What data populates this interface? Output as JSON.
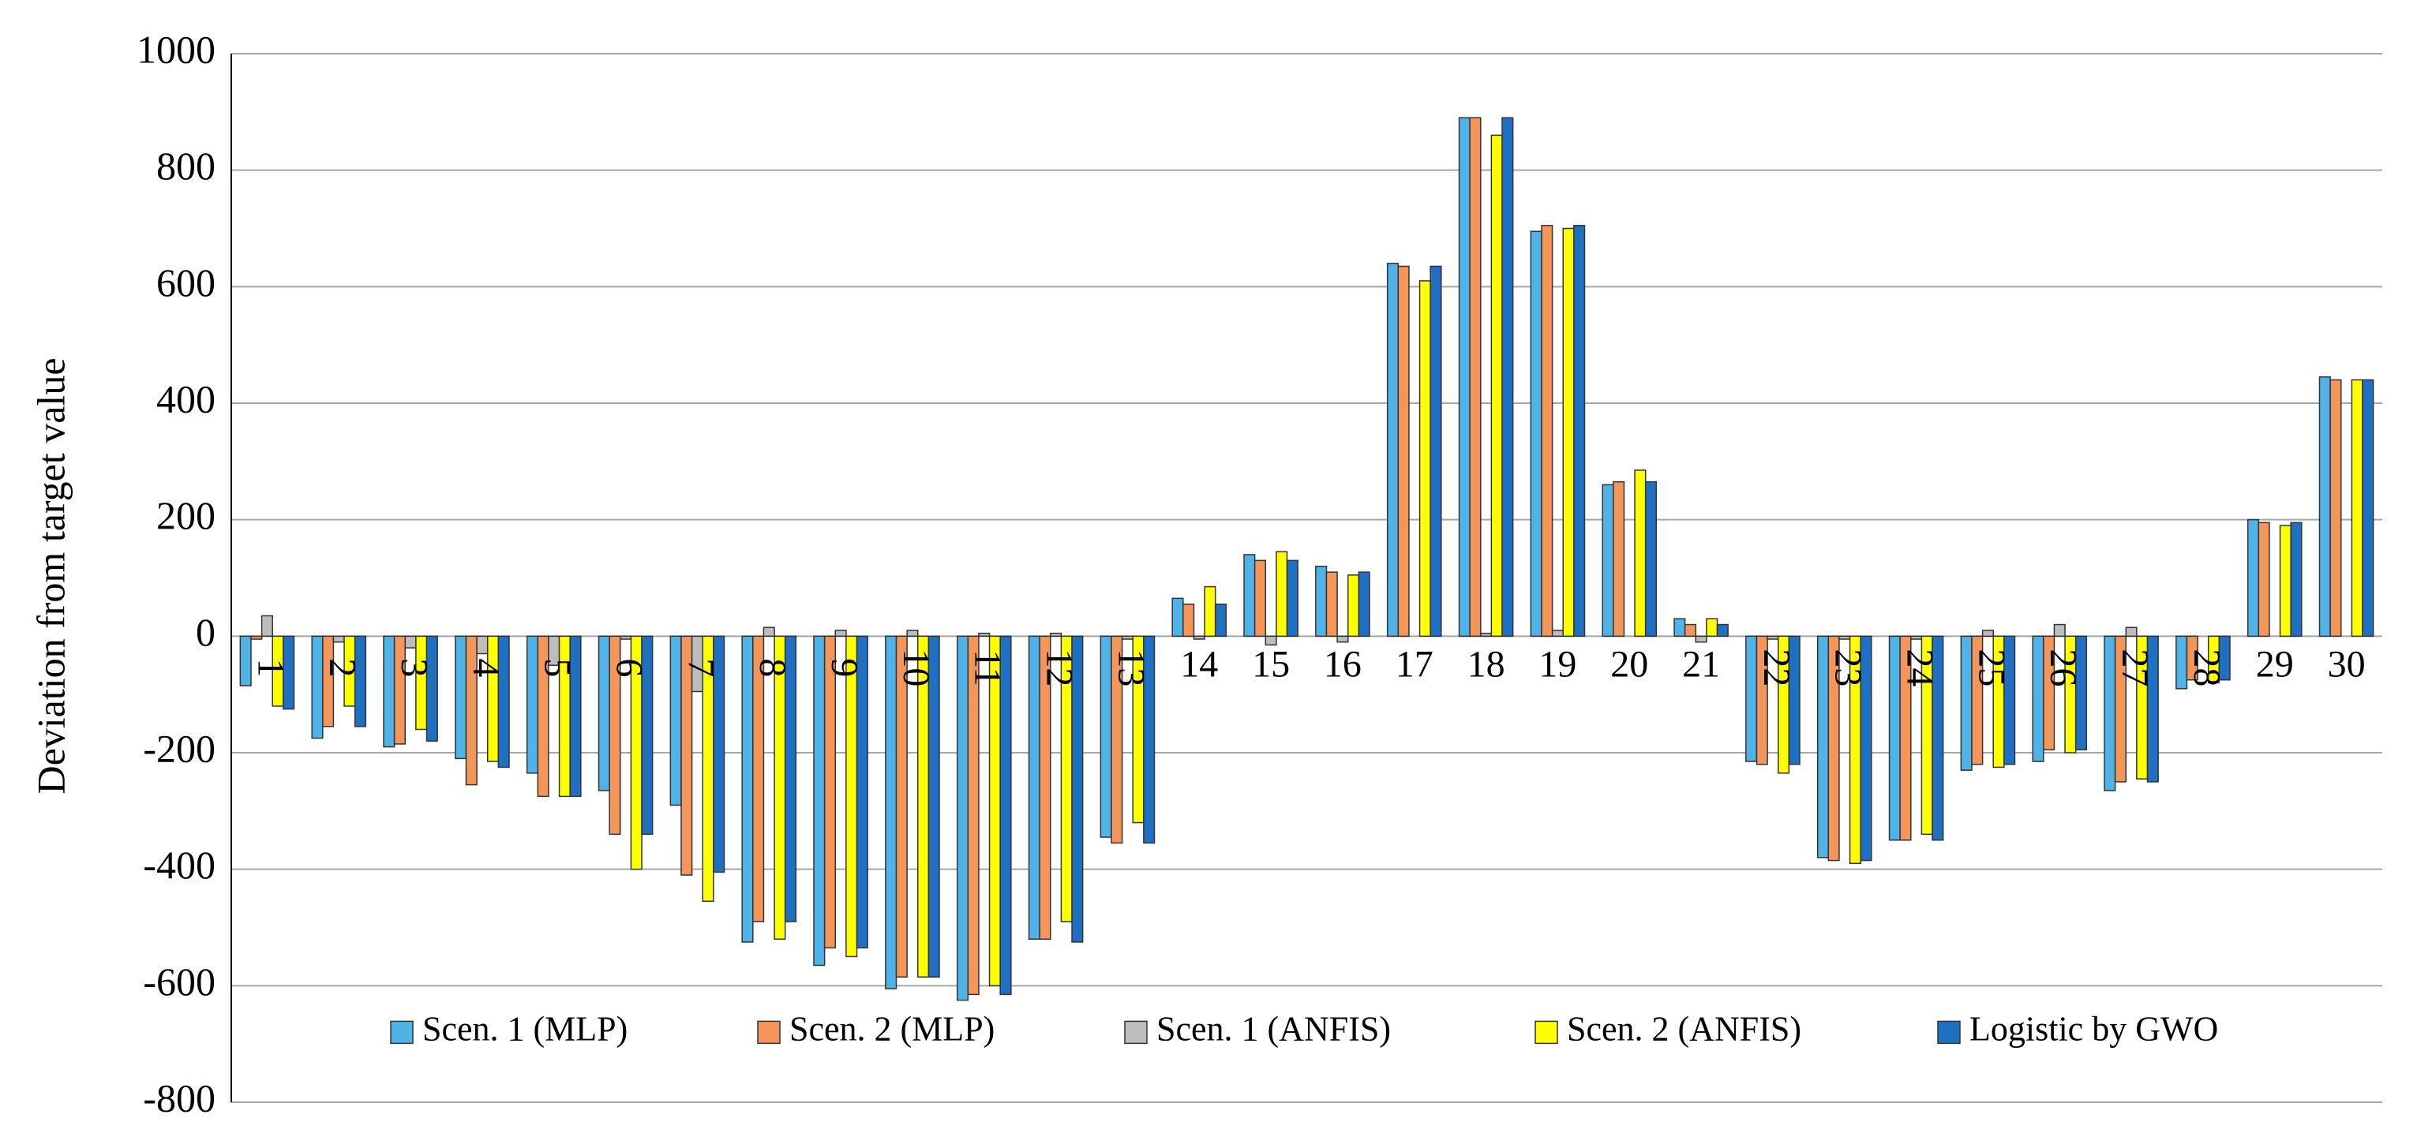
{
  "chart_data": {
    "type": "bar",
    "y_label": "Deviation  from target value",
    "categories": [
      "1",
      "2",
      "3",
      "4",
      "5",
      "6",
      "7",
      "8",
      "9",
      "10",
      "11",
      "12",
      "13",
      "14",
      "15",
      "16",
      "17",
      "18",
      "19",
      "20",
      "21",
      "22",
      "23",
      "24",
      "25",
      "26",
      "27",
      "28",
      "29",
      "30"
    ],
    "series": [
      {
        "name": "Scen. 1 (MLP)",
        "color": "#4fb3e8",
        "values": [
          -85,
          -175,
          -190,
          -210,
          -235,
          -265,
          -290,
          -525,
          -565,
          -605,
          -625,
          -520,
          -345,
          65,
          140,
          120,
          640,
          890,
          695,
          260,
          30,
          -215,
          -380,
          -350,
          -230,
          -215,
          -265,
          -90,
          200,
          445
        ]
      },
      {
        "name": "Scen. 2 (MLP)",
        "color": "#f4955a",
        "values": [
          -5,
          -155,
          -185,
          -255,
          -275,
          -340,
          -410,
          -490,
          -535,
          -585,
          -615,
          -520,
          -355,
          55,
          130,
          110,
          635,
          890,
          705,
          265,
          20,
          -220,
          -385,
          -350,
          -220,
          -195,
          -250,
          -75,
          195,
          440
        ]
      },
      {
        "name": "Scen. 1 (ANFIS)",
        "color": "#bdbdbd",
        "values": [
          35,
          -10,
          -20,
          -30,
          -50,
          -5,
          -95,
          15,
          10,
          10,
          5,
          5,
          -5,
          -5,
          -15,
          -10,
          0,
          5,
          10,
          0,
          -10,
          -5,
          -5,
          -5,
          10,
          20,
          15,
          0,
          0,
          0
        ]
      },
      {
        "name": "Scen. 2 (ANFIS)",
        "color": "#ffff00",
        "values": [
          -120,
          -120,
          -160,
          -215,
          -275,
          -400,
          -455,
          -520,
          -550,
          -585,
          -600,
          -490,
          -320,
          85,
          145,
          105,
          610,
          860,
          700,
          285,
          30,
          -235,
          -390,
          -340,
          -225,
          -200,
          -245,
          -80,
          190,
          440
        ]
      },
      {
        "name": "Logistic by GWO",
        "color": "#1f6fc2",
        "values": [
          -125,
          -155,
          -180,
          -225,
          -275,
          -340,
          -405,
          -490,
          -535,
          -585,
          -615,
          -525,
          -355,
          55,
          130,
          110,
          635,
          890,
          705,
          265,
          20,
          -220,
          -385,
          -350,
          -220,
          -195,
          -250,
          -75,
          195,
          440
        ]
      }
    ],
    "ylim": [
      -800,
      1000
    ],
    "yticks": [
      -800,
      -600,
      -400,
      -200,
      0,
      200,
      400,
      600,
      800,
      1000
    ],
    "grid": true,
    "legend": "bottom"
  }
}
